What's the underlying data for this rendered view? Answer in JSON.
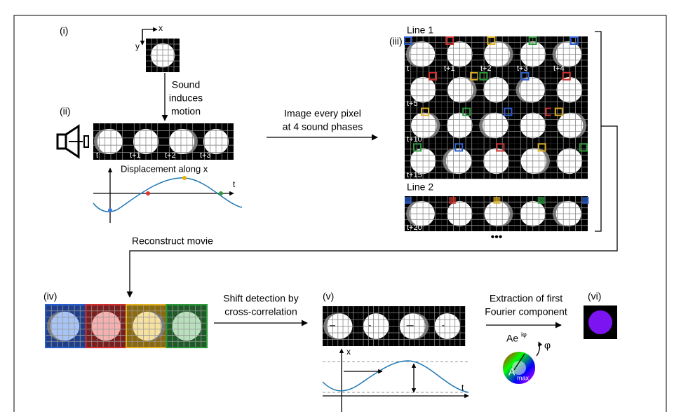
{
  "panel_labels": [
    "(i)",
    "(ii)",
    "(iii)",
    "(iv)",
    "(v)",
    "(vi)"
  ],
  "axes": {
    "x": "x",
    "y": "y"
  },
  "step1": [
    "Sound",
    "induces",
    "motion"
  ],
  "strip_ii": [
    "t",
    "t+1",
    "t+2",
    "t+3"
  ],
  "plot_ii": {
    "label": "Displacement along x",
    "t": "t"
  },
  "step2": [
    "Image every pixel",
    "at 4 sound phases"
  ],
  "line1": {
    "title": "Line 1",
    "frames": [
      "t",
      "t+1",
      "t+2",
      "t+3",
      "t+4",
      "t+5",
      "t+10",
      "t+15"
    ]
  },
  "line2": {
    "title": "Line 2",
    "frames": [
      "t+20"
    ],
    "ellipsis": "•••"
  },
  "step3": "Reconstruct movie",
  "step4": [
    "Shift detection by",
    "cross-correlation"
  ],
  "plot_v": {
    "x": "x",
    "t": "t"
  },
  "step5": [
    "Extraction of first",
    "Fourier component"
  ],
  "formula": {
    "base": "Ae",
    "exp": "iφ",
    "phi": "φ",
    "a": "A",
    "sub": "max"
  }
}
